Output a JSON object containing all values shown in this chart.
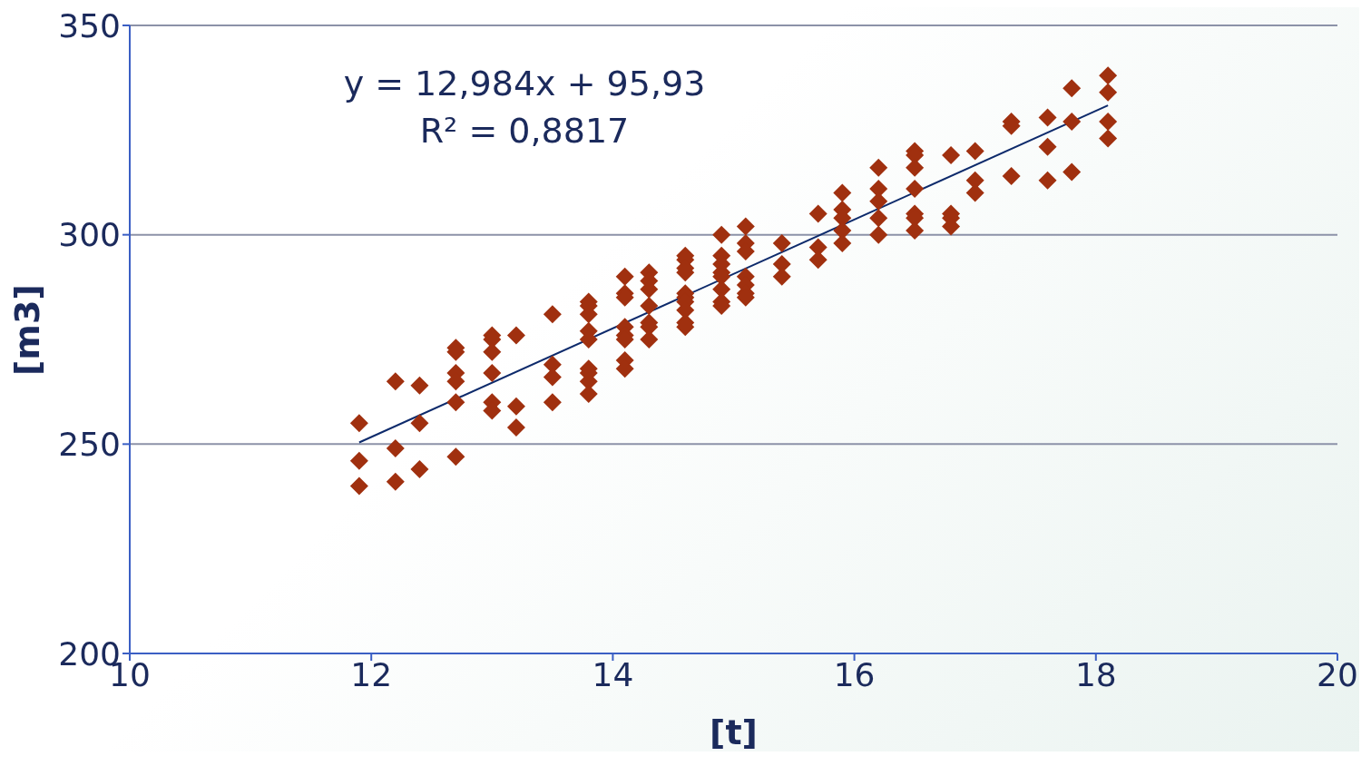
{
  "chart_data": {
    "type": "scatter",
    "xlabel": "[t]",
    "ylabel": "[m3]",
    "xlim": [
      10,
      20
    ],
    "ylim": [
      200,
      350
    ],
    "xticks": [
      10,
      12,
      14,
      16,
      18,
      20
    ],
    "yticks": [
      200,
      250,
      300,
      350
    ],
    "grid": "y",
    "marker": "diamond",
    "annotations": [
      "y = 12,984x + 95,93",
      "R² = 0,8817"
    ],
    "series": [
      {
        "color": "#a0300f",
        "x": [
          11.9,
          11.9,
          11.9,
          12.2,
          12.2,
          12.2,
          12.4,
          12.4,
          12.4,
          12.7,
          12.7,
          12.7,
          12.7,
          12.7,
          12.7,
          13.0,
          13.0,
          13.0,
          13.0,
          13.0,
          13.0,
          13.2,
          13.2,
          13.2,
          13.5,
          13.5,
          13.5,
          13.5,
          13.8,
          13.8,
          13.8,
          13.8,
          13.8,
          13.8,
          13.8,
          13.8,
          13.8,
          14.1,
          14.1,
          14.1,
          14.1,
          14.1,
          14.1,
          14.1,
          14.1,
          14.3,
          14.3,
          14.3,
          14.3,
          14.3,
          14.3,
          14.3,
          14.6,
          14.6,
          14.6,
          14.6,
          14.6,
          14.6,
          14.6,
          14.6,
          14.6,
          14.6,
          14.9,
          14.9,
          14.9,
          14.9,
          14.9,
          14.9,
          14.9,
          14.9,
          15.1,
          15.1,
          15.1,
          15.1,
          15.1,
          15.1,
          15.1,
          15.4,
          15.4,
          15.4,
          15.7,
          15.7,
          15.7,
          15.9,
          15.9,
          15.9,
          15.9,
          15.9,
          16.2,
          16.2,
          16.2,
          16.2,
          16.2,
          16.5,
          16.5,
          16.5,
          16.5,
          16.5,
          16.5,
          16.5,
          16.8,
          16.8,
          16.8,
          16.8,
          17.0,
          17.0,
          17.0,
          17.3,
          17.3,
          17.3,
          17.6,
          17.6,
          17.6,
          17.8,
          17.8,
          17.8,
          18.1,
          18.1,
          18.1,
          18.1
        ],
        "values": [
          255,
          246,
          240,
          265,
          249,
          241,
          264,
          255,
          244,
          273,
          272,
          267,
          265,
          260,
          247,
          276,
          275,
          272,
          267,
          260,
          258,
          276,
          259,
          254,
          281,
          269,
          266,
          260,
          284,
          283,
          281,
          277,
          275,
          268,
          267,
          265,
          262,
          290,
          286,
          285,
          278,
          276,
          275,
          270,
          268,
          291,
          289,
          287,
          283,
          279,
          278,
          275,
          295,
          294,
          292,
          291,
          286,
          285,
          284,
          282,
          279,
          278,
          300,
          295,
          293,
          291,
          290,
          287,
          284,
          283,
          302,
          298,
          296,
          290,
          288,
          286,
          285,
          298,
          293,
          290,
          305,
          297,
          294,
          310,
          306,
          304,
          301,
          298,
          316,
          311,
          308,
          304,
          300,
          320,
          319,
          316,
          311,
          305,
          304,
          301,
          319,
          305,
          304,
          302,
          320,
          313,
          310,
          327,
          326,
          314,
          328,
          321,
          313,
          335,
          327,
          315,
          338,
          334,
          327,
          323
        ]
      },
      {
        "type": "line",
        "color": "#0d2a6b",
        "marker": "none",
        "x": [
          11.9,
          18.1
        ],
        "values": [
          250.4,
          330.9
        ]
      }
    ]
  }
}
